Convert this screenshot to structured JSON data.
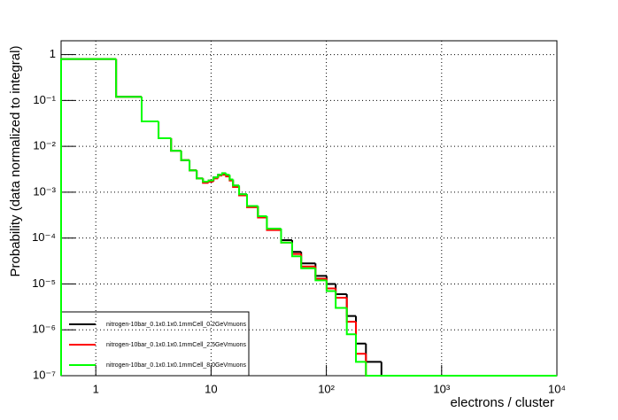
{
  "chart_data": {
    "type": "histogram",
    "xlabel": "electrons / cluster",
    "ylabel": "Probability (data normalized to integral)",
    "log_x": true,
    "log_y": true,
    "grid": true,
    "legend": "lower left",
    "xlim": [
      0.5,
      10000
    ],
    "ylim": [
      1e-07,
      2
    ],
    "xticks": [
      1,
      10,
      {
        "value": 100,
        "label": "10²"
      },
      {
        "value": 1000,
        "label": "10³"
      },
      {
        "value": 10000,
        "label": "10⁴"
      }
    ],
    "yticks": [
      {
        "value": 1e-07,
        "label": "10⁻⁷"
      },
      {
        "value": 1e-06,
        "label": "10⁻⁶"
      },
      {
        "value": 1e-05,
        "label": "10⁻⁵"
      },
      {
        "value": 0.0001,
        "label": "10⁻⁴"
      },
      {
        "value": 0.001,
        "label": "10⁻³"
      },
      {
        "value": 0.01,
        "label": "10⁻²"
      },
      {
        "value": 0.1,
        "label": "10⁻¹"
      },
      1
    ],
    "bins": [
      0.5,
      1.5,
      2.5,
      3.5,
      4.5,
      5.5,
      6.5,
      7.5,
      8.5,
      9.5,
      10.5,
      11.5,
      12.5,
      13.5,
      14.5,
      15.5,
      17.5,
      20.5,
      25.5,
      30.5,
      40.5,
      50.5,
      60.5,
      80.5,
      100.5,
      120.5,
      150.5,
      180.5,
      220.5,
      300.5,
      10000
    ],
    "series": [
      {
        "name": "nitrogen-10bar_0.1x0.1x0.1mmCell_0.2GeVmuons",
        "color": "#000000",
        "values": [
          0.8,
          0.12,
          0.035,
          0.015,
          0.008,
          0.005,
          0.003,
          0.002,
          0.0017,
          0.0018,
          0.0021,
          0.0024,
          0.0025,
          0.0023,
          0.0019,
          0.0014,
          0.0009,
          0.0005,
          0.0003,
          0.00016,
          9e-05,
          5e-05,
          2.8e-05,
          1.5e-05,
          1e-05,
          6e-06,
          2e-06,
          5e-07,
          2e-07,
          0
        ]
      },
      {
        "name": "nitrogen-10bar_0.1x0.1x0.1mmCell_2.5GeVmuons",
        "color": "#ff0000",
        "values": [
          0.8,
          0.12,
          0.035,
          0.015,
          0.008,
          0.005,
          0.003,
          0.002,
          0.0016,
          0.0017,
          0.002,
          0.0023,
          0.0024,
          0.0022,
          0.0018,
          0.0013,
          0.00085,
          0.00047,
          0.00028,
          0.00015,
          8e-05,
          4.5e-05,
          2.4e-05,
          1.3e-05,
          8e-06,
          5e-06,
          1.5e-06,
          3e-07,
          1e-07,
          0
        ]
      },
      {
        "name": "nitrogen-10bar_0.1x0.1x0.1mmCell_8.0GeVmuons",
        "color": "#00ff00",
        "values": [
          0.8,
          0.12,
          0.035,
          0.015,
          0.008,
          0.005,
          0.003,
          0.002,
          0.0017,
          0.0018,
          0.0021,
          0.0024,
          0.0026,
          0.0024,
          0.0019,
          0.0014,
          0.0009,
          0.0005,
          0.0003,
          0.00016,
          8e-05,
          4e-05,
          2.2e-05,
          1.2e-05,
          7e-06,
          3e-06,
          8e-07,
          2e-07,
          0,
          0
        ]
      }
    ]
  }
}
